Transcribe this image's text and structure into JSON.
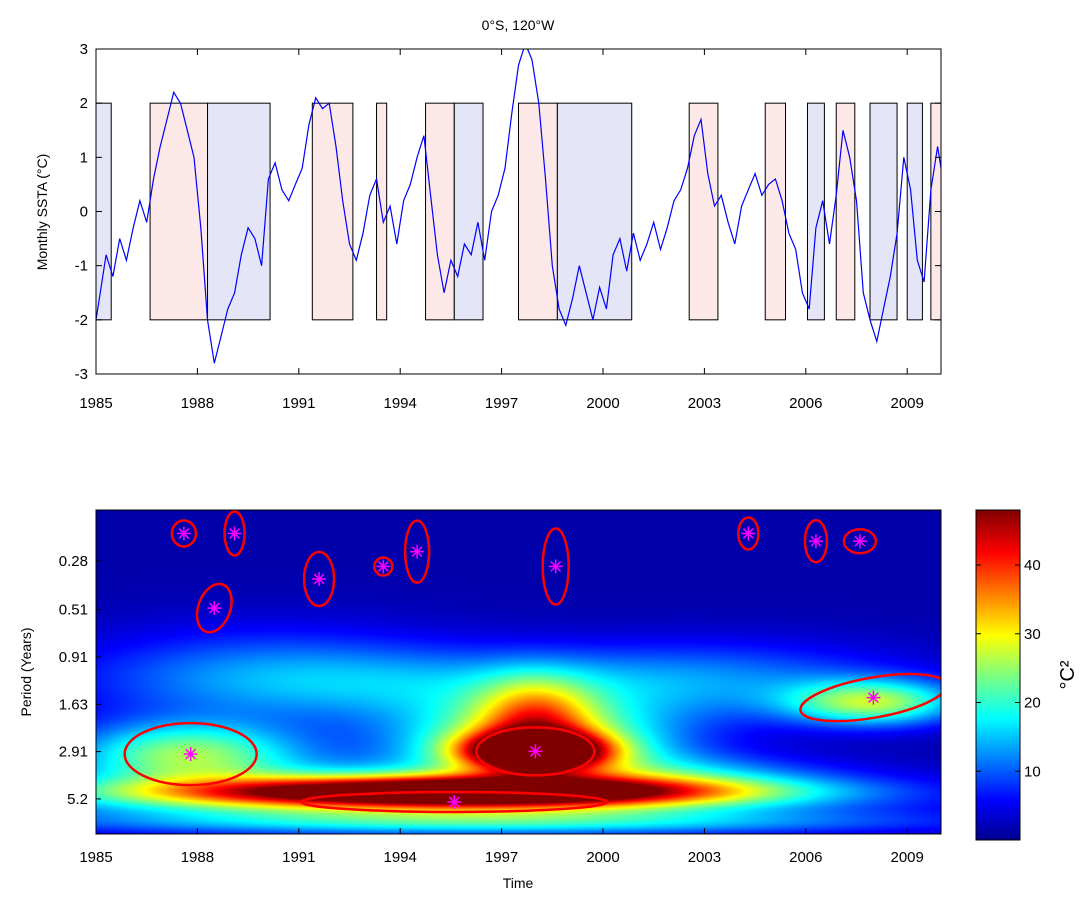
{
  "chart_data": [
    {
      "type": "line",
      "title": "0°S, 120°W",
      "xlabel": "",
      "ylabel": "Monthly SSTA (°C)",
      "xlim": [
        1985,
        2010
      ],
      "ylim": [
        -3,
        3
      ],
      "xticks": [
        "1985",
        "1988",
        "1991",
        "1994",
        "1997",
        "2000",
        "2003",
        "2006",
        "2009"
      ],
      "yticks": [
        "-3",
        "-2",
        "-1",
        "0",
        "1",
        "2",
        "3"
      ],
      "grid": false,
      "line_color": "#0000ff",
      "series": [
        {
          "x": [
            1985.0,
            1985.1,
            1985.3,
            1985.5,
            1985.7,
            1985.9,
            1986.1,
            1986.3,
            1986.5,
            1986.7,
            1986.9,
            1987.1,
            1987.3,
            1987.5,
            1987.7,
            1987.9,
            1988.1,
            1988.3,
            1988.5,
            1988.7,
            1988.9,
            1989.1,
            1989.3,
            1989.5,
            1989.7,
            1989.9,
            1990.1,
            1990.3,
            1990.5,
            1990.7,
            1990.9,
            1991.1,
            1991.3,
            1991.5,
            1991.7,
            1991.9,
            1992.1,
            1992.3,
            1992.5,
            1992.7,
            1992.9,
            1993.1,
            1993.3,
            1993.5,
            1993.7,
            1993.9,
            1994.1,
            1994.3,
            1994.5,
            1994.7,
            1994.9,
            1995.1,
            1995.3,
            1995.5,
            1995.7,
            1995.9,
            1996.1,
            1996.3,
            1996.5,
            1996.7,
            1996.9,
            1997.1,
            1997.3,
            1997.5,
            1997.7,
            1997.9,
            1998.1,
            1998.3,
            1998.5,
            1998.7,
            1998.9,
            1999.1,
            1999.3,
            1999.5,
            1999.7,
            1999.9,
            2000.1,
            2000.3,
            2000.5,
            2000.7,
            2000.9,
            2001.1,
            2001.3,
            2001.5,
            2001.7,
            2001.9,
            2002.1,
            2002.3,
            2002.5,
            2002.7,
            2002.9,
            2003.1,
            2003.3,
            2003.5,
            2003.7,
            2003.9,
            2004.1,
            2004.3,
            2004.5,
            2004.7,
            2004.9,
            2005.1,
            2005.3,
            2005.5,
            2005.7,
            2005.9,
            2006.1,
            2006.3,
            2006.5,
            2006.7,
            2006.9,
            2007.1,
            2007.3,
            2007.5,
            2007.7,
            2007.9,
            2008.1,
            2008.3,
            2008.5,
            2008.7,
            2008.9,
            2009.1,
            2009.3,
            2009.5,
            2009.7,
            2009.9,
            2010.0
          ],
          "y": [
            -2.0,
            -1.6,
            -0.8,
            -1.2,
            -0.5,
            -0.9,
            -0.3,
            0.2,
            -0.2,
            0.6,
            1.2,
            1.7,
            2.2,
            2.0,
            1.5,
            1.0,
            -0.3,
            -2.0,
            -2.8,
            -2.3,
            -1.8,
            -1.5,
            -0.8,
            -0.3,
            -0.5,
            -1.0,
            0.6,
            0.9,
            0.4,
            0.2,
            0.5,
            0.8,
            1.6,
            2.1,
            1.9,
            2.0,
            1.2,
            0.2,
            -0.6,
            -0.9,
            -0.4,
            0.3,
            0.6,
            -0.2,
            0.1,
            -0.6,
            0.2,
            0.5,
            1.0,
            1.4,
            0.3,
            -0.8,
            -1.5,
            -0.9,
            -1.2,
            -0.6,
            -0.8,
            -0.2,
            -0.9,
            0.0,
            0.3,
            0.8,
            1.8,
            2.7,
            3.1,
            2.8,
            2.0,
            0.6,
            -1.0,
            -1.8,
            -2.1,
            -1.6,
            -1.0,
            -1.5,
            -2.0,
            -1.4,
            -1.8,
            -0.8,
            -0.5,
            -1.1,
            -0.4,
            -0.9,
            -0.6,
            -0.2,
            -0.7,
            -0.3,
            0.2,
            0.4,
            0.8,
            1.4,
            1.7,
            0.7,
            0.1,
            0.3,
            -0.2,
            -0.6,
            0.1,
            0.4,
            0.7,
            0.3,
            0.5,
            0.6,
            0.2,
            -0.4,
            -0.7,
            -1.5,
            -1.8,
            -0.3,
            0.2,
            -0.6,
            0.3,
            1.5,
            1.0,
            0.2,
            -1.5,
            -2.0,
            -2.4,
            -1.8,
            -1.2,
            -0.4,
            1.0,
            0.4,
            -0.9,
            -1.3,
            0.4,
            1.2,
            0.8
          ]
        }
      ],
      "shaded_periods": [
        {
          "type": "negative",
          "start": 1985.0,
          "end": 1985.45
        },
        {
          "type": "positive",
          "start": 1986.6,
          "end": 1988.3
        },
        {
          "type": "negative",
          "start": 1988.3,
          "end": 1990.15
        },
        {
          "type": "positive",
          "start": 1991.4,
          "end": 1992.6
        },
        {
          "type": "positive",
          "start": 1993.3,
          "end": 1993.6
        },
        {
          "type": "positive",
          "start": 1994.75,
          "end": 1995.6
        },
        {
          "type": "negative",
          "start": 1995.6,
          "end": 1996.45
        },
        {
          "type": "positive",
          "start": 1997.5,
          "end": 1998.65
        },
        {
          "type": "negative",
          "start": 1998.65,
          "end": 2000.85
        },
        {
          "type": "positive",
          "start": 2002.55,
          "end": 2003.4
        },
        {
          "type": "positive",
          "start": 2004.8,
          "end": 2005.4
        },
        {
          "type": "negative",
          "start": 2006.05,
          "end": 2006.55
        },
        {
          "type": "positive",
          "start": 2006.9,
          "end": 2007.45
        },
        {
          "type": "negative",
          "start": 2007.9,
          "end": 2008.7
        },
        {
          "type": "negative",
          "start": 2009.0,
          "end": 2009.45
        },
        {
          "type": "positive",
          "start": 2009.7,
          "end": 2010.0
        }
      ],
      "shade_colors": {
        "positive": "#fde8e8",
        "negative": "#e4e6f8"
      },
      "shade_range": [
        -2,
        2
      ]
    },
    {
      "type": "heatmap",
      "title": "",
      "xlabel": "Time",
      "ylabel": "Period (Years)",
      "xlim": [
        1985,
        2010
      ],
      "xticks": [
        "1985",
        "1988",
        "1991",
        "1994",
        "1997",
        "2000",
        "2003",
        "2006",
        "2009"
      ],
      "yticks": [
        "0.28",
        "0.51",
        "0.91",
        "1.63",
        "2.91",
        "5.2"
      ],
      "period_range": [
        0.15,
        8.0
      ],
      "colorbar": {
        "label": "°C²",
        "ticks": [
          "10",
          "20",
          "30",
          "40"
        ],
        "range": [
          0,
          48
        ]
      },
      "background_power": 2,
      "blobs": [
        {
          "t": 1995.5,
          "p": 4.8,
          "sx": 5.5,
          "sy": 0.18,
          "v": 44
        },
        {
          "t": 1995.0,
          "p": 5.1,
          "sx": 8.0,
          "sy": 0.36,
          "v": 22
        },
        {
          "t": 1987.7,
          "p": 3.0,
          "sx": 2.4,
          "sy": 0.4,
          "v": 22
        },
        {
          "t": 1998.0,
          "p": 2.9,
          "sx": 1.4,
          "sy": 0.22,
          "v": 48
        },
        {
          "t": 1998.0,
          "p": 2.6,
          "sx": 2.8,
          "sy": 0.5,
          "v": 26
        },
        {
          "t": 1998.0,
          "p": 1.9,
          "sx": 1.2,
          "sy": 0.5,
          "v": 18
        },
        {
          "t": 1996.0,
          "p": 1.3,
          "sx": 6.0,
          "sy": 0.45,
          "v": 9
        },
        {
          "t": 2008.0,
          "p": 1.6,
          "sx": 1.8,
          "sy": 0.28,
          "v": 22
        },
        {
          "t": 2003.5,
          "p": 1.2,
          "sx": 4.0,
          "sy": 0.5,
          "v": 7
        },
        {
          "t": 1990.0,
          "p": 1.1,
          "sx": 4.0,
          "sy": 0.6,
          "v": 8
        },
        {
          "t": 1997.0,
          "p": 7.0,
          "sx": 9.0,
          "sy": 0.15,
          "v": 10
        },
        {
          "t": 2002.0,
          "p": 4.0,
          "sx": 3.0,
          "sy": 0.3,
          "v": 8
        }
      ],
      "significance_regions": [
        {
          "t": 1987.6,
          "p": 0.2
        },
        {
          "t": 1989.1,
          "p": 0.2
        },
        {
          "t": 1988.5,
          "p": 0.5
        },
        {
          "t": 1991.6,
          "p": 0.35
        },
        {
          "t": 1993.5,
          "p": 0.3
        },
        {
          "t": 1994.5,
          "p": 0.25
        },
        {
          "t": 1998.6,
          "p": 0.3
        },
        {
          "t": 2004.3,
          "p": 0.2
        },
        {
          "t": 2006.3,
          "p": 0.22
        },
        {
          "t": 2007.6,
          "p": 0.22
        },
        {
          "t": 1987.8,
          "p": 3.0
        },
        {
          "t": 1998.0,
          "p": 2.9
        },
        {
          "t": 1995.6,
          "p": 5.4
        },
        {
          "t": 2008.0,
          "p": 1.5
        }
      ],
      "ellipse_color": "#ff0000",
      "marker_color": "#ff00ff"
    }
  ]
}
